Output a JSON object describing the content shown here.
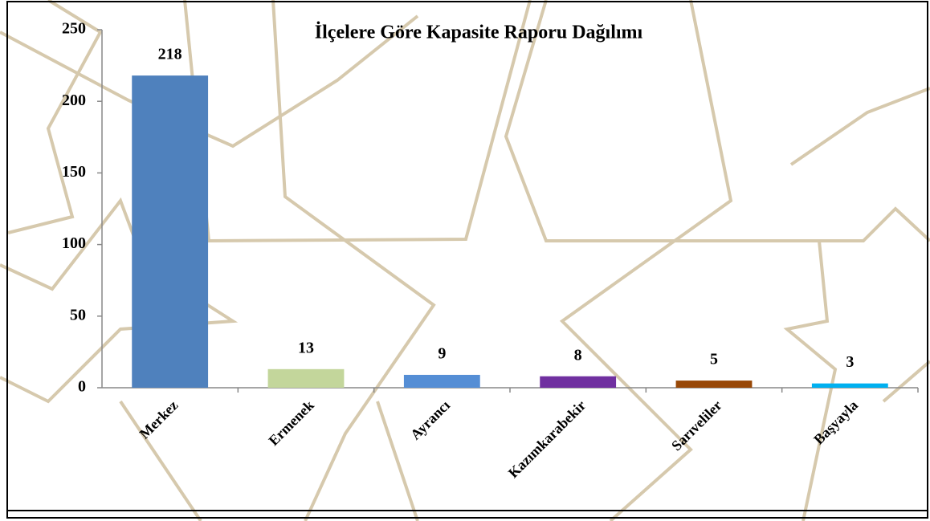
{
  "chart_data": {
    "type": "bar",
    "title": "İlçelere Göre Kapasite Raporu Dağılımı",
    "categories": [
      "Merkez",
      "Ermenek",
      "Ayrancı",
      "Kazımkarabekir",
      "Sarıveliler",
      "Başyayla"
    ],
    "values": [
      218,
      13,
      9,
      8,
      5,
      3
    ],
    "colors": [
      "#4f81bd",
      "#c3d69b",
      "#558ed5",
      "#7030a0",
      "#984807",
      "#00b0f0"
    ],
    "ylim": [
      0,
      250
    ],
    "yticks": [
      0,
      50,
      100,
      150,
      200,
      250
    ]
  }
}
